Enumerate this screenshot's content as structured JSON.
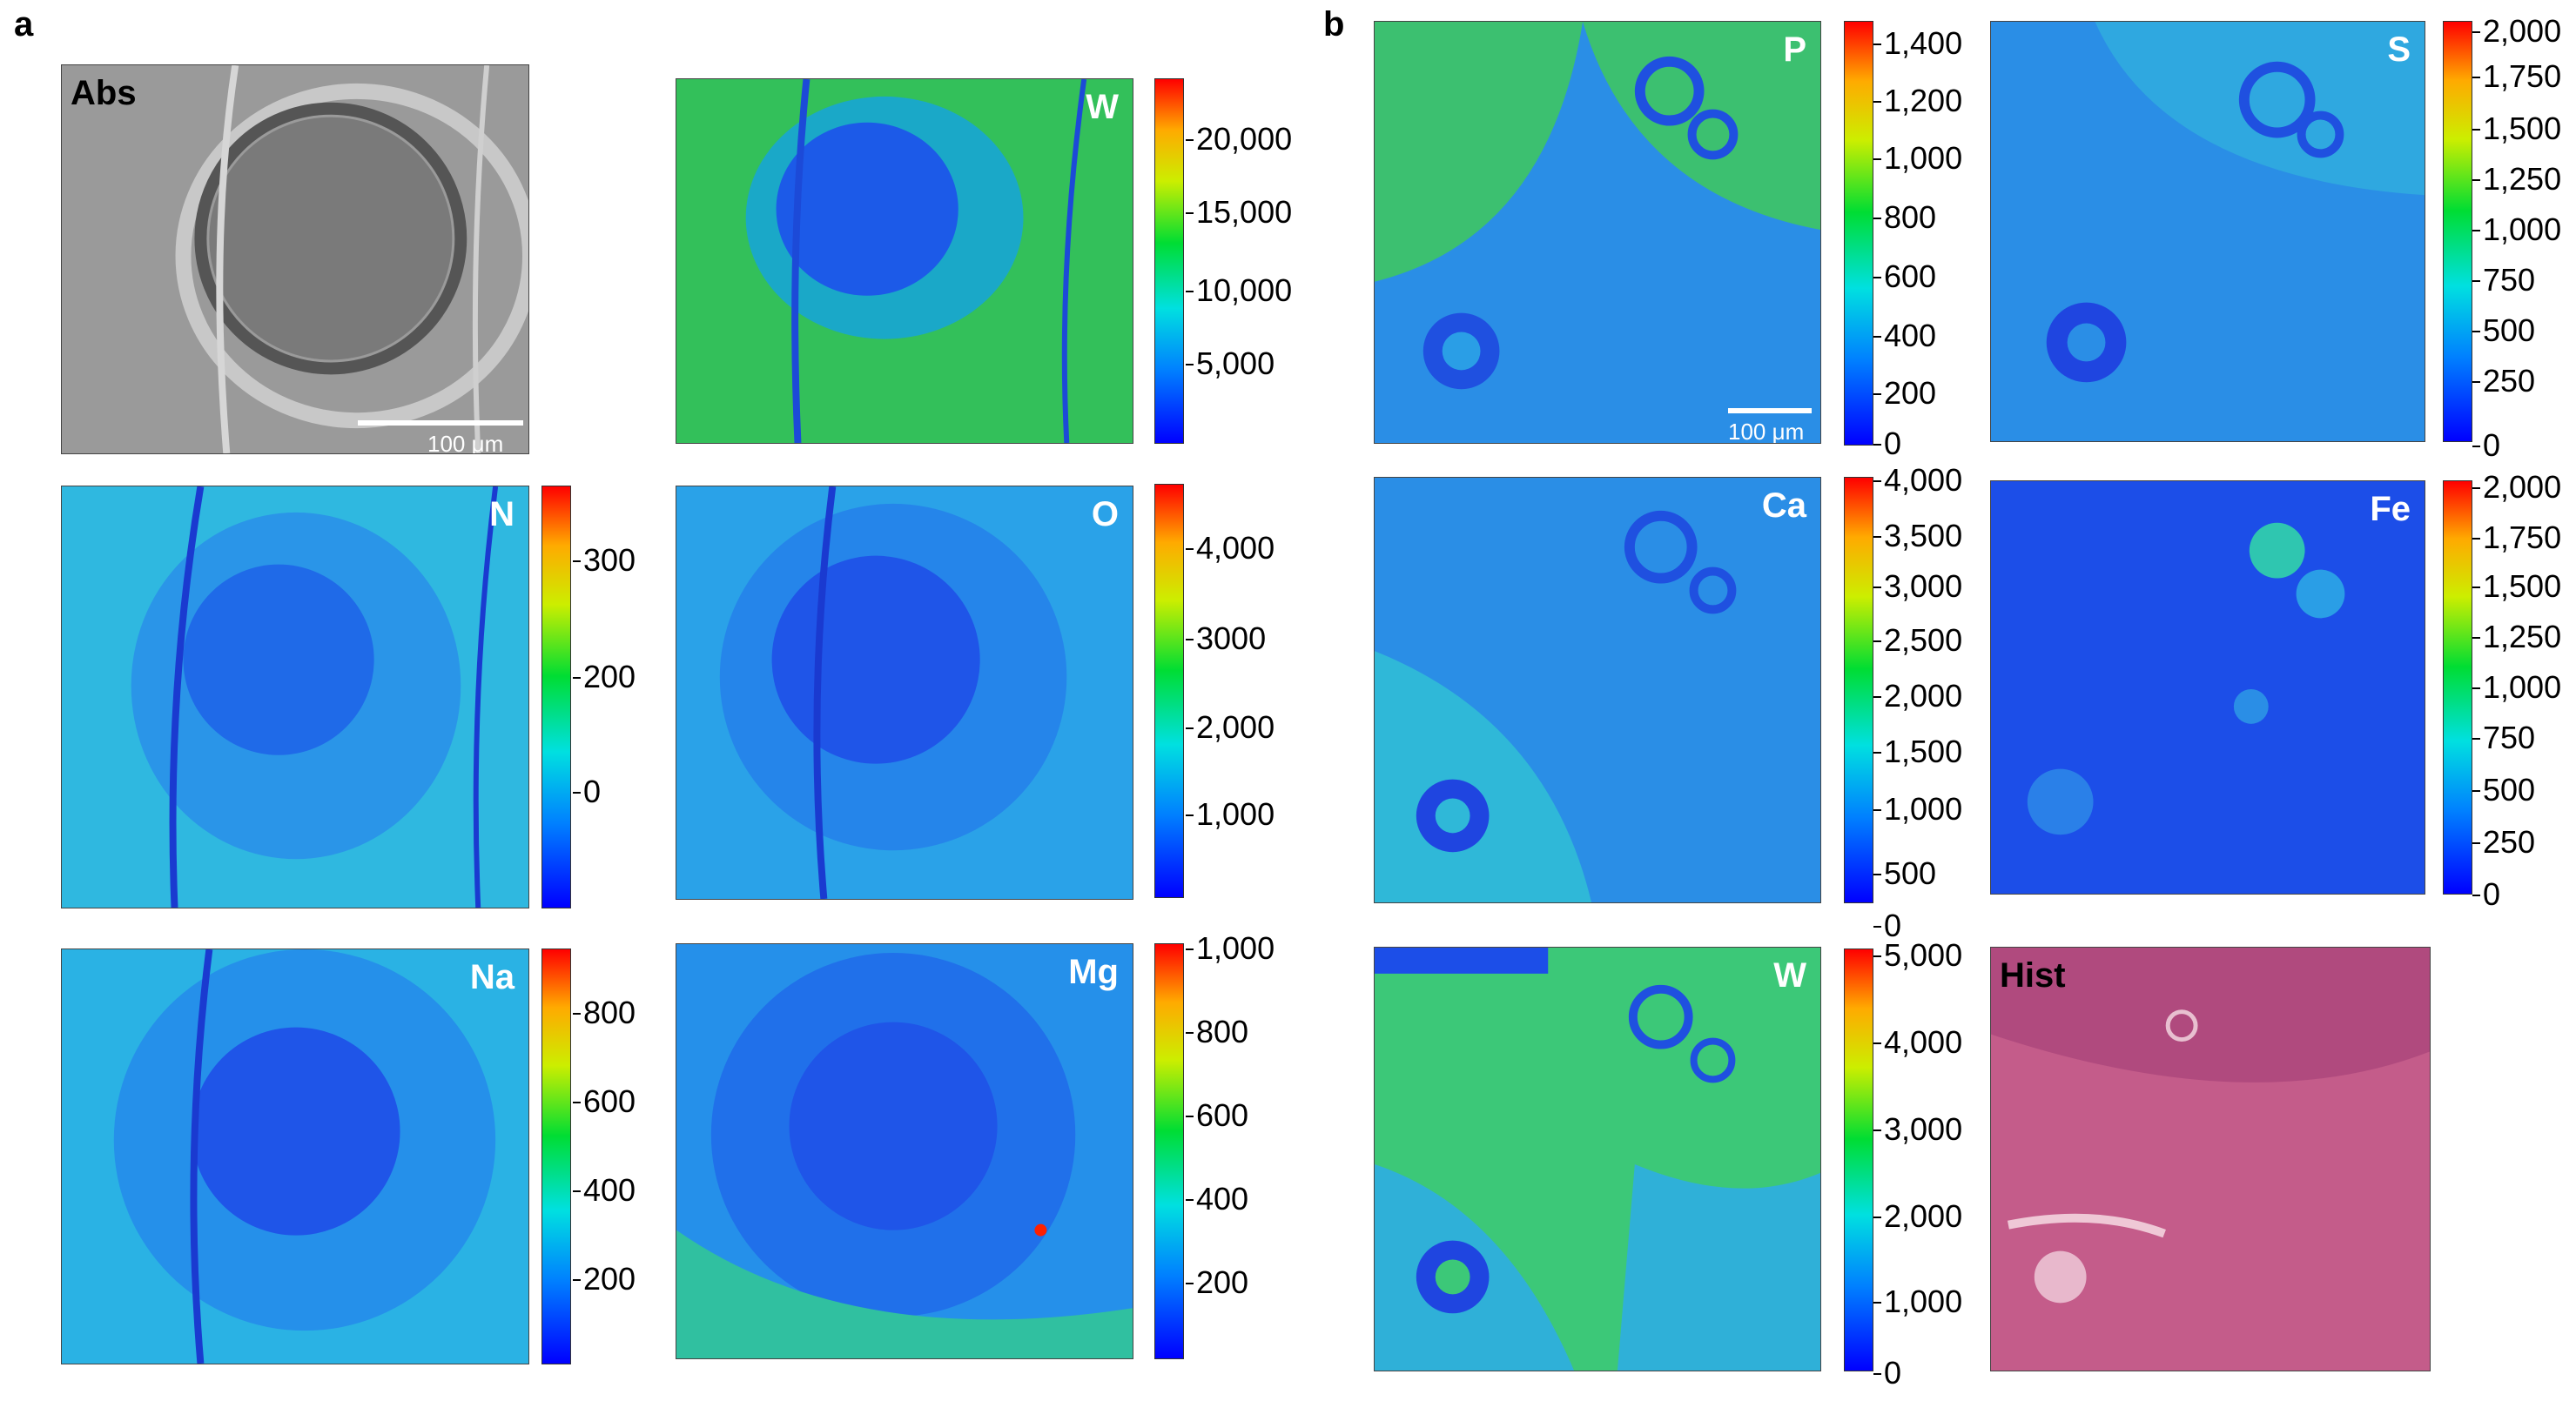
{
  "panels": {
    "a": "a",
    "b": "b"
  },
  "scale_bar": "100 μm",
  "maps": [
    {
      "id": "abs",
      "label": "Abs",
      "style": "gray"
    },
    {
      "id": "a-w",
      "label": "W",
      "style": "green",
      "colorbar": [
        "20,000",
        "15,000",
        "10,000",
        "5,000"
      ]
    },
    {
      "id": "a-n",
      "label": "N",
      "style": "cyan",
      "colorbar": [
        "300",
        "200",
        "0"
      ]
    },
    {
      "id": "a-o",
      "label": "O",
      "style": "blue",
      "colorbar": [
        "4,000",
        "3000",
        "2,000",
        "1,000"
      ]
    },
    {
      "id": "a-na",
      "label": "Na",
      "style": "blue",
      "colorbar": [
        "800",
        "600",
        "400",
        "200"
      ]
    },
    {
      "id": "a-mg",
      "label": "Mg",
      "style": "blue",
      "colorbar": [
        "1,000",
        "800",
        "600",
        "400",
        "200"
      ]
    },
    {
      "id": "b-p",
      "label": "P",
      "style": "green",
      "colorbar": [
        "1,400",
        "1,200",
        "1,000",
        "800",
        "600",
        "400",
        "200",
        "0"
      ]
    },
    {
      "id": "b-s",
      "label": "S",
      "style": "blue",
      "colorbar": [
        "2,000",
        "1,750",
        "1,500",
        "1,250",
        "1,000",
        "750",
        "500",
        "250",
        "0"
      ]
    },
    {
      "id": "b-ca",
      "label": "Ca",
      "style": "cyan",
      "colorbar": [
        "4,000",
        "3,500",
        "3,000",
        "2,500",
        "2,000",
        "1,500",
        "1,000",
        "500",
        "0"
      ]
    },
    {
      "id": "b-fe",
      "label": "Fe",
      "style": "deepblue",
      "colorbar": [
        "2,000",
        "1,750",
        "1,500",
        "1,250",
        "1,000",
        "750",
        "500",
        "250",
        "0"
      ]
    },
    {
      "id": "b-w",
      "label": "W",
      "style": "green",
      "colorbar": [
        "5,000",
        "4,000",
        "3,000",
        "2,000",
        "1,000",
        "0"
      ]
    },
    {
      "id": "hist",
      "label": "Hist",
      "style": "hist"
    }
  ]
}
